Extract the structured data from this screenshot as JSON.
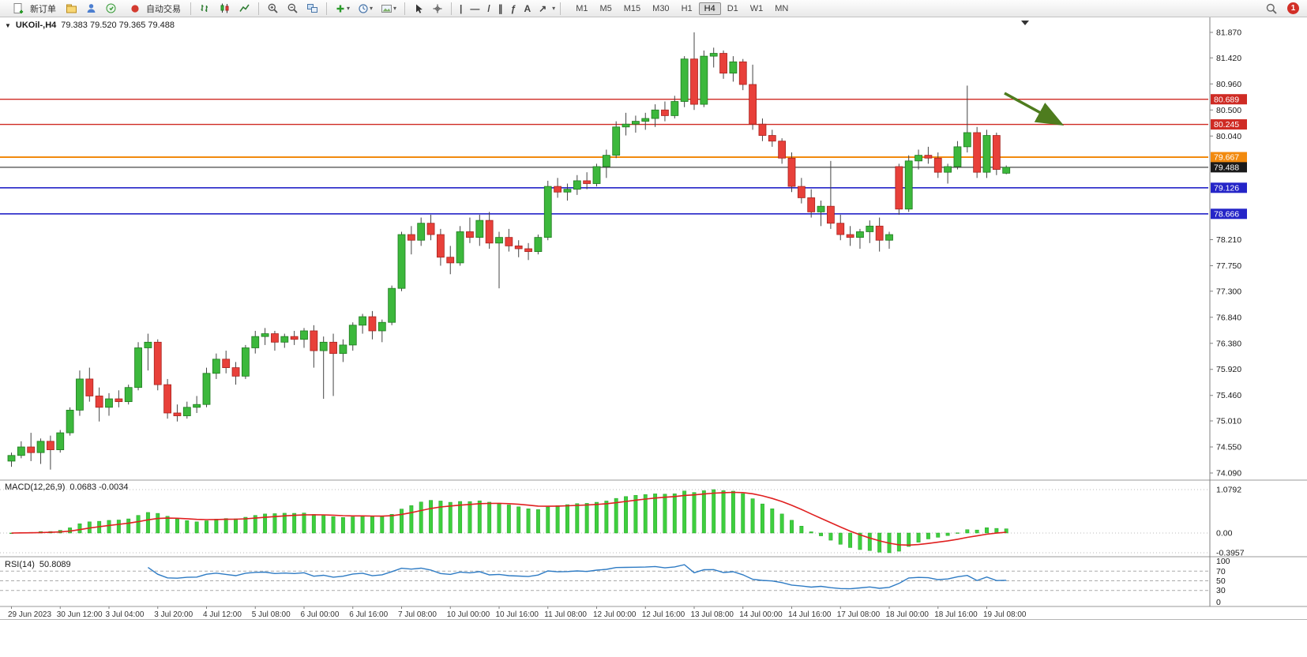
{
  "toolbar": {
    "new_order_label": "新订单",
    "autotrading_label": "自动交易",
    "glyphs": {
      "vline": "|",
      "hline": "—",
      "trendline": "/",
      "channel": "∥",
      "fibonacci": "ƒ",
      "text_tool": "A",
      "arrows": "↗",
      "caret": "▾"
    },
    "timeframes": [
      "M1",
      "M5",
      "M15",
      "M30",
      "H1",
      "H4",
      "D1",
      "W1",
      "MN"
    ],
    "active_timeframe": "H4",
    "notification_count": "1"
  },
  "chart": {
    "symbol_readout": "UKOil-,H4",
    "ohlc_readout": "79.383 79.520 79.365 79.488",
    "price_ticks": [
      "81.870",
      "81.420",
      "80.960",
      "80.500",
      "80.040",
      "78.210",
      "77.750",
      "77.300",
      "76.840",
      "76.380",
      "75.920",
      "75.460",
      "75.010",
      "74.550",
      "74.090"
    ],
    "price_badges": [
      {
        "text": "80.689",
        "color": "#cf2b24"
      },
      {
        "text": "80.245",
        "color": "#cf2b24"
      },
      {
        "text": "79.667",
        "color": "#f28a0e"
      },
      {
        "text": "79.488",
        "color": "#1a1a1a"
      },
      {
        "text": "79.126",
        "color": "#2525c8"
      },
      {
        "text": "78.666",
        "color": "#2525c8"
      }
    ],
    "hlines": [
      {
        "price": 80.689,
        "color": "#cf2b24",
        "w": 1.4
      },
      {
        "price": 80.245,
        "color": "#cf2b24",
        "w": 1.4
      },
      {
        "price": 79.667,
        "color": "#f28a0e",
        "w": 2
      },
      {
        "price": 79.488,
        "color": "#1a1a1a",
        "w": 1
      },
      {
        "price": 79.126,
        "color": "#2525c8",
        "w": 1.6
      },
      {
        "price": 78.666,
        "color": "#2525c8",
        "w": 1.6
      }
    ],
    "annotation_arrow_color": "#4e7c1e",
    "bull_color": "#3cb83c",
    "bear_color": "#e8403a"
  },
  "macd": {
    "label": "MACD(12,26,9)",
    "values": "0.0683 -0.0034",
    "axis_labels": [
      "1.0792",
      "0.00",
      "-0.3957"
    ],
    "fast": 12,
    "slow": 26,
    "signal": 9,
    "histogram_color": "#3ecf3e",
    "signal_color": "#e02020"
  },
  "rsi": {
    "label": "RSI(14)",
    "value": "50.8089",
    "period": 14,
    "axis_labels": [
      "100",
      "70",
      "50",
      "30",
      "0"
    ],
    "axis_values": [
      100,
      70,
      50,
      30,
      0
    ],
    "levels": [
      70,
      50,
      30
    ],
    "line_color": "#2e7bc4"
  },
  "chart_data": {
    "type": "candlestick",
    "symbol": "UKOil-",
    "timeframe": "H4",
    "title": "UKOil- H4 candlestick chart with MACD(12,26,9) and RSI(14)",
    "x_labels": [
      "29 Jun 2023",
      "30 Jun 12:00",
      "3 Jul 04:00",
      "3 Jul 20:00",
      "4 Jul 12:00",
      "5 Jul 08:00",
      "6 Jul 00:00",
      "6 Jul 16:00",
      "7 Jul 08:00",
      "10 Jul 00:00",
      "10 Jul 16:00",
      "11 Jul 08:00",
      "12 Jul 00:00",
      "12 Jul 16:00",
      "13 Jul 08:00",
      "14 Jul 00:00",
      "14 Jul 16:00",
      "17 Jul 08:00",
      "18 Jul 00:00",
      "18 Jul 16:00",
      "19 Jul 08:00"
    ],
    "y_range": [
      74.09,
      81.87
    ],
    "candles": [
      [
        74.3,
        74.45,
        74.2,
        74.4
      ],
      [
        74.4,
        74.65,
        74.35,
        74.55
      ],
      [
        74.55,
        74.8,
        74.3,
        74.45
      ],
      [
        74.45,
        74.7,
        74.25,
        74.65
      ],
      [
        74.65,
        74.75,
        74.15,
        74.5
      ],
      [
        74.5,
        74.85,
        74.45,
        74.8
      ],
      [
        74.8,
        75.25,
        74.75,
        75.2
      ],
      [
        75.2,
        75.9,
        75.1,
        75.75
      ],
      [
        75.75,
        75.95,
        75.35,
        75.45
      ],
      [
        75.45,
        75.6,
        75.0,
        75.25
      ],
      [
        75.25,
        75.5,
        75.1,
        75.4
      ],
      [
        75.4,
        75.55,
        75.25,
        75.35
      ],
      [
        75.35,
        75.65,
        75.3,
        75.6
      ],
      [
        75.6,
        76.4,
        75.55,
        76.3
      ],
      [
        76.3,
        76.55,
        75.9,
        76.4
      ],
      [
        76.4,
        76.45,
        75.55,
        75.65
      ],
      [
        75.65,
        75.75,
        75.05,
        75.15
      ],
      [
        75.15,
        75.3,
        75.0,
        75.1
      ],
      [
        75.1,
        75.35,
        75.05,
        75.25
      ],
      [
        75.25,
        75.45,
        75.15,
        75.3
      ],
      [
        75.3,
        75.95,
        75.25,
        75.85
      ],
      [
        75.85,
        76.2,
        75.75,
        76.1
      ],
      [
        76.1,
        76.25,
        75.85,
        75.95
      ],
      [
        75.95,
        76.05,
        75.65,
        75.8
      ],
      [
        75.8,
        76.35,
        75.75,
        76.3
      ],
      [
        76.3,
        76.6,
        76.2,
        76.5
      ],
      [
        76.5,
        76.65,
        76.35,
        76.55
      ],
      [
        76.55,
        76.6,
        76.25,
        76.4
      ],
      [
        76.4,
        76.55,
        76.3,
        76.5
      ],
      [
        76.5,
        76.6,
        76.35,
        76.45
      ],
      [
        76.45,
        76.65,
        76.3,
        76.6
      ],
      [
        76.6,
        76.7,
        75.95,
        76.25
      ],
      [
        76.25,
        76.5,
        75.4,
        76.4
      ],
      [
        76.4,
        76.55,
        75.45,
        76.2
      ],
      [
        76.2,
        76.45,
        76.05,
        76.35
      ],
      [
        76.35,
        76.75,
        76.25,
        76.7
      ],
      [
        76.7,
        76.9,
        76.55,
        76.85
      ],
      [
        76.85,
        76.95,
        76.45,
        76.6
      ],
      [
        76.6,
        76.8,
        76.4,
        76.75
      ],
      [
        76.75,
        77.4,
        76.7,
        77.35
      ],
      [
        77.35,
        78.35,
        77.3,
        78.3
      ],
      [
        78.3,
        78.45,
        77.95,
        78.2
      ],
      [
        78.2,
        78.6,
        78.1,
        78.5
      ],
      [
        78.5,
        78.65,
        78.2,
        78.3
      ],
      [
        78.3,
        78.4,
        77.75,
        77.9
      ],
      [
        77.9,
        78.1,
        77.6,
        77.8
      ],
      [
        77.8,
        78.45,
        77.75,
        78.35
      ],
      [
        78.35,
        78.6,
        78.15,
        78.25
      ],
      [
        78.25,
        78.65,
        78.1,
        78.55
      ],
      [
        78.55,
        78.7,
        78.05,
        78.15
      ],
      [
        78.15,
        78.35,
        77.35,
        78.25
      ],
      [
        78.25,
        78.4,
        78.0,
        78.1
      ],
      [
        78.1,
        78.2,
        77.9,
        78.05
      ],
      [
        78.05,
        78.15,
        77.85,
        78.0
      ],
      [
        78.0,
        78.3,
        77.95,
        78.25
      ],
      [
        78.25,
        79.25,
        78.2,
        79.15
      ],
      [
        79.15,
        79.3,
        78.95,
        79.05
      ],
      [
        79.05,
        79.2,
        78.9,
        79.1
      ],
      [
        79.1,
        79.35,
        79.0,
        79.25
      ],
      [
        79.25,
        79.4,
        79.1,
        79.2
      ],
      [
        79.2,
        79.55,
        79.15,
        79.5
      ],
      [
        79.5,
        79.8,
        79.3,
        79.7
      ],
      [
        79.7,
        80.3,
        79.65,
        80.2
      ],
      [
        80.2,
        80.45,
        80.05,
        80.25
      ],
      [
        80.25,
        80.4,
        80.1,
        80.3
      ],
      [
        80.3,
        80.45,
        80.15,
        80.35
      ],
      [
        80.35,
        80.6,
        80.2,
        80.5
      ],
      [
        80.5,
        80.65,
        80.3,
        80.4
      ],
      [
        80.4,
        80.75,
        80.35,
        80.65
      ],
      [
        80.65,
        81.45,
        80.55,
        81.4
      ],
      [
        81.4,
        81.87,
        80.5,
        80.6
      ],
      [
        80.6,
        81.55,
        80.55,
        81.45
      ],
      [
        81.45,
        81.6,
        81.25,
        81.5
      ],
      [
        81.5,
        81.55,
        81.05,
        81.15
      ],
      [
        81.15,
        81.45,
        81.0,
        81.35
      ],
      [
        81.35,
        81.4,
        80.85,
        80.95
      ],
      [
        80.95,
        81.3,
        80.15,
        80.25
      ],
      [
        80.25,
        80.35,
        79.95,
        80.05
      ],
      [
        80.05,
        80.15,
        79.85,
        79.95
      ],
      [
        79.95,
        80.0,
        79.55,
        79.65
      ],
      [
        79.65,
        79.75,
        79.05,
        79.15
      ],
      [
        79.15,
        79.3,
        78.85,
        78.95
      ],
      [
        78.95,
        79.1,
        78.6,
        78.7
      ],
      [
        78.7,
        78.9,
        78.45,
        78.8
      ],
      [
        78.8,
        79.6,
        78.4,
        78.5
      ],
      [
        78.5,
        78.65,
        78.2,
        78.3
      ],
      [
        78.3,
        78.45,
        78.1,
        78.25
      ],
      [
        78.25,
        78.4,
        78.05,
        78.35
      ],
      [
        78.35,
        78.55,
        78.15,
        78.45
      ],
      [
        78.45,
        78.6,
        78.0,
        78.2
      ],
      [
        78.2,
        78.35,
        78.05,
        78.3
      ],
      [
        79.5,
        79.55,
        78.65,
        78.75
      ],
      [
        78.75,
        79.7,
        78.7,
        79.6
      ],
      [
        79.6,
        79.8,
        79.45,
        79.7
      ],
      [
        79.7,
        79.85,
        79.55,
        79.65
      ],
      [
        79.65,
        79.75,
        79.3,
        79.4
      ],
      [
        79.4,
        79.55,
        79.2,
        79.5
      ],
      [
        79.5,
        79.95,
        79.45,
        79.85
      ],
      [
        79.85,
        80.93,
        79.75,
        80.1
      ],
      [
        80.1,
        80.2,
        79.3,
        79.4
      ],
      [
        79.4,
        80.15,
        79.3,
        80.05
      ],
      [
        80.05,
        80.1,
        79.35,
        79.45
      ],
      [
        79.383,
        79.52,
        79.365,
        79.488
      ]
    ]
  }
}
